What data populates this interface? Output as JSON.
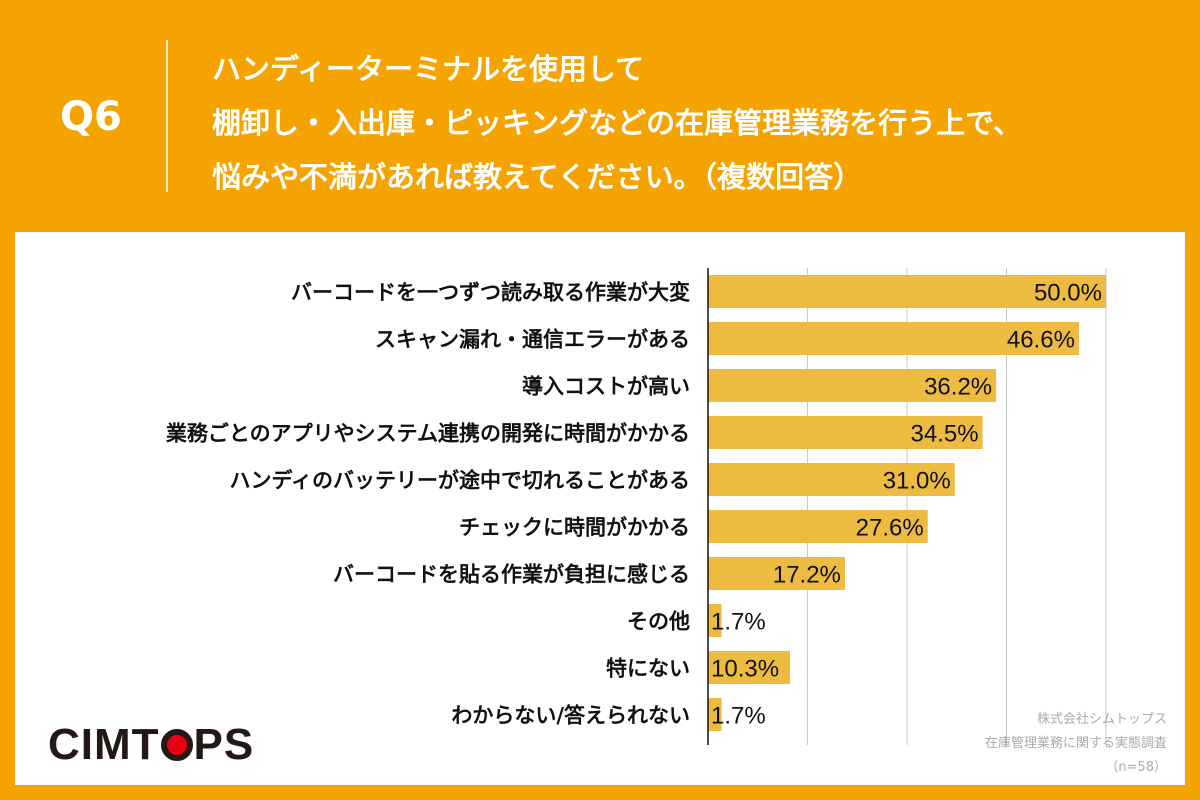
{
  "header": {
    "question": "Q6",
    "title_lines": [
      "ハンディーターミナルを使用して",
      "棚卸し・入出庫・ピッキングなどの在庫管理業務を行う上で、",
      "悩みや不満があれば教えてください。（複数回答）"
    ]
  },
  "logo": {
    "text": "CIMTOPS"
  },
  "source": {
    "company": "株式会社シムトップス",
    "survey": "在庫管理業務に関する実態調査",
    "sample": "（n=58）"
  },
  "colors": {
    "background": "#F5A300",
    "bar": "#EDBB40",
    "panel": "#FFFFFF",
    "logo_dot": "#E60012"
  },
  "chart_data": {
    "type": "bar",
    "orientation": "horizontal",
    "categories": [
      "バーコードを一つずつ読み取る作業が大変",
      "スキャン漏れ・通信エラーがある",
      "導入コストが高い",
      "業務ごとのアプリやシステム連携の開発に時間がかかる",
      "ハンディのバッテリーが途中で切れることがある",
      "チェックに時間がかかる",
      "バーコードを貼る作業が負担に感じる",
      "その他",
      "特にない",
      "わからない/答えられない"
    ],
    "values": [
      50.0,
      46.6,
      36.2,
      34.5,
      31.0,
      27.6,
      17.2,
      1.7,
      10.3,
      1.7
    ],
    "value_labels": [
      "50.0%",
      "46.6%",
      "36.2%",
      "34.5%",
      "31.0%",
      "27.6%",
      "17.2%",
      "1.7%",
      "10.3%",
      "1.7%"
    ],
    "xlim": [
      0,
      50
    ],
    "grid": true
  }
}
